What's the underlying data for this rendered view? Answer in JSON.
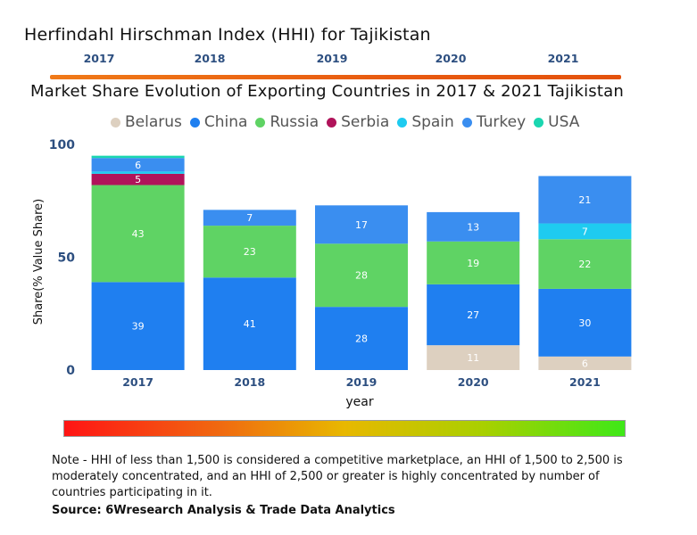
{
  "header": {
    "title": "Herfindahl Hirschman Index (HHI) for Tajikistan",
    "years": [
      "2017",
      "2018",
      "2019",
      "2020",
      "2021"
    ]
  },
  "legend": [
    {
      "label": "Belarus",
      "color": "#ddd0c0"
    },
    {
      "label": "China",
      "color": "#1f7ff0"
    },
    {
      "label": "Russia",
      "color": "#5fd364"
    },
    {
      "label": "Serbia",
      "color": "#b0135a"
    },
    {
      "label": "Spain",
      "color": "#1ecbf0"
    },
    {
      "label": "Turkey",
      "color": "#3a8ef0"
    },
    {
      "label": "USA",
      "color": "#1ad6b0"
    }
  ],
  "chart_data": {
    "type": "bar",
    "stacked": true,
    "title": "Market Share Evolution of Exporting Countries in 2017 & 2021 Tajikistan",
    "xlabel": "year",
    "ylabel": "Share(% Value Share)",
    "ylim": [
      0,
      100
    ],
    "yticks": [
      "0",
      "50",
      "100"
    ],
    "categories": [
      "2017",
      "2018",
      "2019",
      "2020",
      "2021"
    ],
    "series": [
      {
        "name": "Belarus",
        "color": "#ddd0c0",
        "values": [
          0,
          0,
          0,
          11,
          6
        ]
      },
      {
        "name": "China",
        "color": "#1f7ff0",
        "values": [
          39,
          41,
          28,
          27,
          30
        ]
      },
      {
        "name": "Russia",
        "color": "#5fd364",
        "values": [
          43,
          23,
          28,
          19,
          22
        ]
      },
      {
        "name": "Serbia",
        "color": "#b0135a",
        "values": [
          5,
          0,
          0,
          0,
          0
        ]
      },
      {
        "name": "Spain",
        "color": "#1ecbf0",
        "values": [
          1,
          0,
          0,
          0,
          7
        ]
      },
      {
        "name": "Turkey",
        "color": "#3a8ef0",
        "values": [
          6,
          7,
          17,
          13,
          21
        ]
      },
      {
        "name": "USA",
        "color": "#1ad6b0",
        "values": [
          1,
          0,
          0,
          0,
          0
        ]
      }
    ],
    "labels": [
      [
        "",
        "39",
        "43",
        "5",
        "",
        "6",
        ""
      ],
      [
        "",
        "41",
        "23",
        "",
        "",
        "7",
        ""
      ],
      [
        "",
        "28",
        "28",
        "",
        "",
        "17",
        ""
      ],
      [
        "11",
        "27",
        "19",
        "",
        "",
        "13",
        ""
      ],
      [
        "6",
        "30",
        "22",
        "",
        "7",
        "21",
        ""
      ]
    ]
  },
  "footer": {
    "note": "Note - HHI of less than 1,500 is considered a competitive marketplace, an HHI of 1,500 to 2,500 is moderately concentrated, and an HHI of 2,500 or greater is highly concentrated by number of countries participating in it.",
    "source": "Source: 6Wresearch Analysis & Trade Data Analytics"
  }
}
